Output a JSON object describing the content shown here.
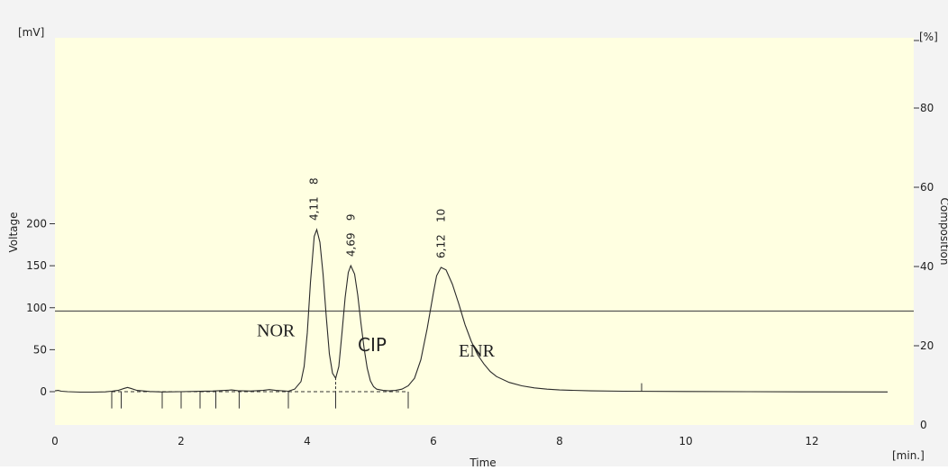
{
  "chart_data": {
    "type": "line",
    "title": "",
    "xlabel": "Time",
    "x_unit": "[min.]",
    "ylabel": "Voltage",
    "y_unit": "[mV]",
    "y2label": "Composition",
    "y2_unit": "[%]",
    "xlim": [
      0,
      13.5
    ],
    "ylim": [
      -20,
      215
    ],
    "y2lim": [
      0,
      100
    ],
    "x_ticks": [
      "0",
      "2",
      "4",
      "6",
      "8",
      "10",
      "12"
    ],
    "y_ticks": [
      "0",
      "50",
      "100",
      "150",
      "200"
    ],
    "y2_ticks": [
      "0",
      "20",
      "40",
      "60",
      "80"
    ],
    "grid": false,
    "series": [
      {
        "x": [
          0,
          0.05,
          0.1,
          0.2,
          0.4,
          0.6,
          0.8,
          0.9,
          1.0,
          1.1,
          1.15,
          1.2,
          1.3,
          1.5,
          1.7,
          2.0,
          2.3,
          2.5,
          2.7,
          2.8,
          2.9,
          3.1,
          3.3,
          3.4,
          3.5,
          3.7,
          3.8,
          3.9,
          3.95,
          4.0,
          4.05,
          4.11,
          4.15,
          4.2,
          4.25,
          4.3,
          4.35,
          4.4,
          4.45,
          4.5,
          4.55,
          4.6,
          4.65,
          4.69,
          4.75,
          4.8,
          4.85,
          4.9,
          4.95,
          5.0,
          5.05,
          5.1,
          5.2,
          5.3,
          5.4,
          5.5,
          5.6,
          5.7,
          5.8,
          5.9,
          6.0,
          6.05,
          6.12,
          6.2,
          6.3,
          6.4,
          6.5,
          6.6,
          6.7,
          6.8,
          6.9,
          7.0,
          7.2,
          7.4,
          7.6,
          7.8,
          8.0,
          8.5,
          9.0,
          10.0,
          11.0,
          12.0,
          13.2
        ],
        "y": [
          1,
          1.5,
          0.5,
          0,
          -0.5,
          -0.5,
          -0.2,
          0.5,
          1.5,
          4,
          5,
          4,
          1.5,
          0.2,
          -0.3,
          0,
          0.4,
          0.8,
          1.5,
          2,
          1.2,
          0.8,
          1.5,
          2.5,
          1.5,
          0.5,
          3,
          12,
          30,
          70,
          130,
          185,
          193,
          178,
          140,
          90,
          45,
          22,
          16,
          30,
          70,
          112,
          142,
          150,
          140,
          115,
          82,
          52,
          28,
          13,
          6,
          3,
          1.5,
          1,
          1.5,
          3,
          7,
          16,
          38,
          75,
          118,
          138,
          148,
          145,
          128,
          105,
          80,
          60,
          44,
          33,
          24,
          18,
          11,
          7,
          4.5,
          3,
          2,
          1,
          0.5,
          0.2,
          0,
          -0.2,
          -0.3
        ]
      }
    ],
    "baseline": {
      "x": [
        0.9,
        4.45,
        5.6
      ],
      "y": [
        0,
        0,
        0
      ]
    },
    "horizontal_line_y": 96,
    "peak_labels": [
      {
        "label": "4,11",
        "number": "8",
        "x": 4.11,
        "y": 193
      },
      {
        "label": "4,69",
        "number": "9",
        "x": 4.69,
        "y": 150
      },
      {
        "label": "6,12",
        "number": "10",
        "x": 6.12,
        "y": 148
      }
    ],
    "annotations": [
      {
        "text": "NOR",
        "x": 3.2,
        "y": 66
      },
      {
        "text": "CIP",
        "x": 4.8,
        "y": 48
      },
      {
        "text": "ENR",
        "x": 6.4,
        "y": 42
      }
    ],
    "event_markers_x": [
      0.9,
      1.05,
      1.7,
      2.0,
      2.3,
      2.55,
      2.92,
      3.7,
      4.45,
      5.6
    ],
    "integration_marker_x": 9.3,
    "colors": {
      "plot_background": "#ffffe1",
      "outer_background": "#f3f3f3",
      "trace": "#2a2a2a"
    }
  }
}
